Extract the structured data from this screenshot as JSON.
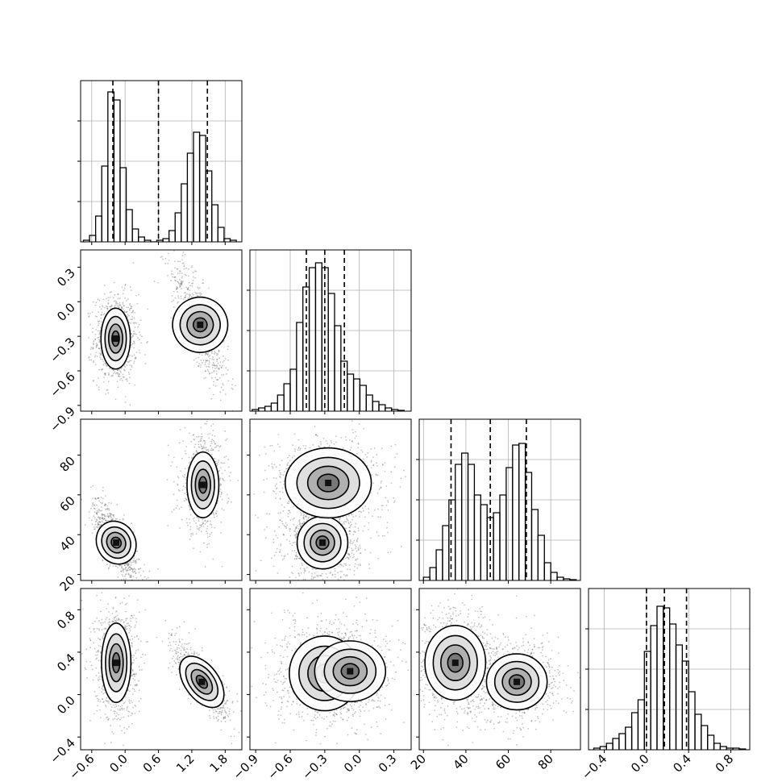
{
  "figure": {
    "type": "corner_plot",
    "parameters": 4
  },
  "chart_data": [
    {
      "type": "histogram",
      "row": 0,
      "col": 0,
      "xlim": [
        -0.8,
        2.1
      ],
      "ylim": [
        0,
        1.0
      ],
      "bins_x": [
        -0.75,
        -0.64,
        -0.53,
        -0.42,
        -0.31,
        -0.2,
        -0.09,
        0.02,
        0.13,
        0.24,
        0.35,
        0.46,
        0.57,
        0.68,
        0.79,
        0.9,
        1.01,
        1.12,
        1.23,
        1.34,
        1.45,
        1.56,
        1.67,
        1.78,
        1.89,
        2.0
      ],
      "counts": [
        0.01,
        0.04,
        0.16,
        0.47,
        0.93,
        0.88,
        0.46,
        0.2,
        0.08,
        0.03,
        0.01,
        0.0,
        0.01,
        0.02,
        0.07,
        0.18,
        0.36,
        0.55,
        0.68,
        0.66,
        0.44,
        0.23,
        0.09,
        0.02,
        0.01
      ],
      "quantiles": [
        -0.22,
        0.6,
        1.48
      ],
      "grid": true
    },
    {
      "type": "histogram",
      "row": 1,
      "col": 1,
      "xlim": [
        -0.95,
        0.45
      ],
      "ylim": [
        0,
        1.0
      ],
      "bins_x": [
        -0.93,
        -0.875,
        -0.82,
        -0.765,
        -0.71,
        -0.655,
        -0.6,
        -0.545,
        -0.49,
        -0.435,
        -0.38,
        -0.325,
        -0.27,
        -0.215,
        -0.16,
        -0.105,
        -0.05,
        0.005,
        0.06,
        0.115,
        0.17,
        0.225,
        0.28,
        0.335,
        0.39
      ],
      "counts": [
        0.01,
        0.02,
        0.03,
        0.05,
        0.1,
        0.17,
        0.26,
        0.55,
        0.77,
        0.89,
        0.92,
        0.89,
        0.73,
        0.53,
        0.31,
        0.23,
        0.2,
        0.16,
        0.1,
        0.06,
        0.04,
        0.02,
        0.01,
        0.005
      ],
      "quantiles": [
        -0.46,
        -0.3,
        -0.13
      ],
      "grid": true
    },
    {
      "type": "histogram",
      "row": 2,
      "col": 2,
      "xlim": [
        18,
        94
      ],
      "ylim": [
        0,
        1.0
      ],
      "bins_x": [
        20,
        23,
        26,
        29,
        32,
        35,
        38,
        41,
        44,
        47,
        50,
        53,
        56,
        59,
        62,
        65,
        68,
        71,
        74,
        77,
        80,
        83,
        86,
        89,
        92
      ],
      "counts": [
        0.02,
        0.08,
        0.19,
        0.34,
        0.5,
        0.72,
        0.79,
        0.72,
        0.53,
        0.47,
        0.39,
        0.42,
        0.53,
        0.7,
        0.84,
        0.85,
        0.67,
        0.44,
        0.28,
        0.11,
        0.05,
        0.02,
        0.01,
        0.005
      ],
      "quantiles": [
        33,
        51.5,
        68.5
      ],
      "grid": true
    },
    {
      "type": "histogram",
      "row": 3,
      "col": 3,
      "xlim": [
        -0.55,
        0.98
      ],
      "ylim": [
        0,
        1.0
      ],
      "bins_x": [
        -0.5,
        -0.44,
        -0.38,
        -0.32,
        -0.26,
        -0.2,
        -0.14,
        -0.08,
        -0.02,
        0.04,
        0.1,
        0.16,
        0.22,
        0.28,
        0.34,
        0.4,
        0.46,
        0.52,
        0.58,
        0.64,
        0.7,
        0.76,
        0.82,
        0.88,
        0.94
      ],
      "counts": [
        0.01,
        0.02,
        0.04,
        0.07,
        0.1,
        0.14,
        0.23,
        0.31,
        0.61,
        0.77,
        0.89,
        0.88,
        0.78,
        0.65,
        0.55,
        0.36,
        0.22,
        0.15,
        0.09,
        0.04,
        0.02,
        0.01,
        0.01,
        0.005
      ],
      "quantiles": [
        0.0,
        0.17,
        0.38
      ],
      "grid": true
    },
    {
      "type": "scatter_density",
      "row": 1,
      "col": 0,
      "xlim": [
        -0.8,
        2.1
      ],
      "ylim": [
        -0.95,
        0.45
      ],
      "blobs": [
        {
          "cx": -0.17,
          "cy": -0.32,
          "sx": 0.12,
          "sy": 0.12,
          "rho": 0.0,
          "weight": 1.0
        },
        {
          "cx": 1.35,
          "cy": -0.2,
          "sx": 0.16,
          "sy": 0.18,
          "rho": -0.8,
          "weight": 0.7
        }
      ]
    },
    {
      "type": "scatter_density",
      "row": 2,
      "col": 0,
      "xlim": [
        -0.8,
        2.1
      ],
      "ylim": [
        17,
        98
      ],
      "blobs": [
        {
          "cx": -0.16,
          "cy": 36,
          "sx": 0.13,
          "sy": 6.5,
          "rho": -0.75,
          "weight": 1.0
        },
        {
          "cx": 1.4,
          "cy": 65,
          "sx": 0.13,
          "sy": 7.5,
          "rho": 0.0,
          "weight": 0.8
        }
      ]
    },
    {
      "type": "scatter_density",
      "row": 2,
      "col": 1,
      "xlim": [
        -0.95,
        0.45
      ],
      "ylim": [
        17,
        98
      ],
      "blobs": [
        {
          "cx": -0.32,
          "cy": 36,
          "sx": 0.1,
          "sy": 6,
          "rho": 0.0,
          "weight": 1.0
        },
        {
          "cx": -0.27,
          "cy": 66,
          "sx": 0.17,
          "sy": 8,
          "rho": 0.0,
          "weight": 0.85
        }
      ]
    },
    {
      "type": "scatter_density",
      "row": 3,
      "col": 0,
      "xlim": [
        -0.8,
        2.1
      ],
      "ylim": [
        -0.52,
        1.0
      ],
      "blobs": [
        {
          "cx": -0.16,
          "cy": 0.3,
          "sx": 0.12,
          "sy": 0.17,
          "rho": 0.0,
          "weight": 1.0
        },
        {
          "cx": 1.38,
          "cy": 0.12,
          "sx": 0.17,
          "sy": 0.12,
          "rho": -0.8,
          "weight": 0.75
        }
      ]
    },
    {
      "type": "scatter_density",
      "row": 3,
      "col": 1,
      "xlim": [
        -0.95,
        0.45
      ],
      "ylim": [
        -0.52,
        1.0
      ],
      "blobs": [
        {
          "cx": -0.3,
          "cy": 0.2,
          "sx": 0.14,
          "sy": 0.16,
          "rho": 0.0,
          "weight": 1.0
        },
        {
          "cx": -0.08,
          "cy": 0.22,
          "sx": 0.14,
          "sy": 0.13,
          "rho": 0.0,
          "weight": 0.5
        }
      ]
    },
    {
      "type": "scatter_density",
      "row": 3,
      "col": 2,
      "xlim": [
        18,
        94
      ],
      "ylim": [
        -0.52,
        1.0
      ],
      "blobs": [
        {
          "cx": 35,
          "cy": 0.3,
          "sx": 6.5,
          "sy": 0.16,
          "rho": 0.0,
          "weight": 1.0
        },
        {
          "cx": 64,
          "cy": 0.12,
          "sx": 6.5,
          "sy": 0.12,
          "rho": 0.0,
          "weight": 0.9
        }
      ]
    }
  ],
  "axes": {
    "p0": {
      "ticks": [
        -0.6,
        0.0,
        0.6,
        1.2,
        1.8
      ],
      "labels": [
        "−0.6",
        "0.0",
        "0.6",
        "1.2",
        "1.8"
      ]
    },
    "p1": {
      "ticks": [
        -0.9,
        -0.6,
        -0.3,
        0.0,
        0.3
      ],
      "labels": [
        "−0.9",
        "−0.6",
        "−0.3",
        "0.0",
        "0.3"
      ]
    },
    "p2": {
      "ticks": [
        20,
        40,
        60,
        80
      ],
      "labels": [
        "20",
        "40",
        "60",
        "80"
      ]
    },
    "p3": {
      "ticks": [
        -0.4,
        0.0,
        0.4,
        0.8
      ],
      "labels": [
        "−0.4",
        "0.0",
        "0.4",
        "0.8"
      ]
    }
  },
  "style": {
    "ink": "#000000",
    "grid": "#b0b0b0",
    "point": "#555555"
  }
}
